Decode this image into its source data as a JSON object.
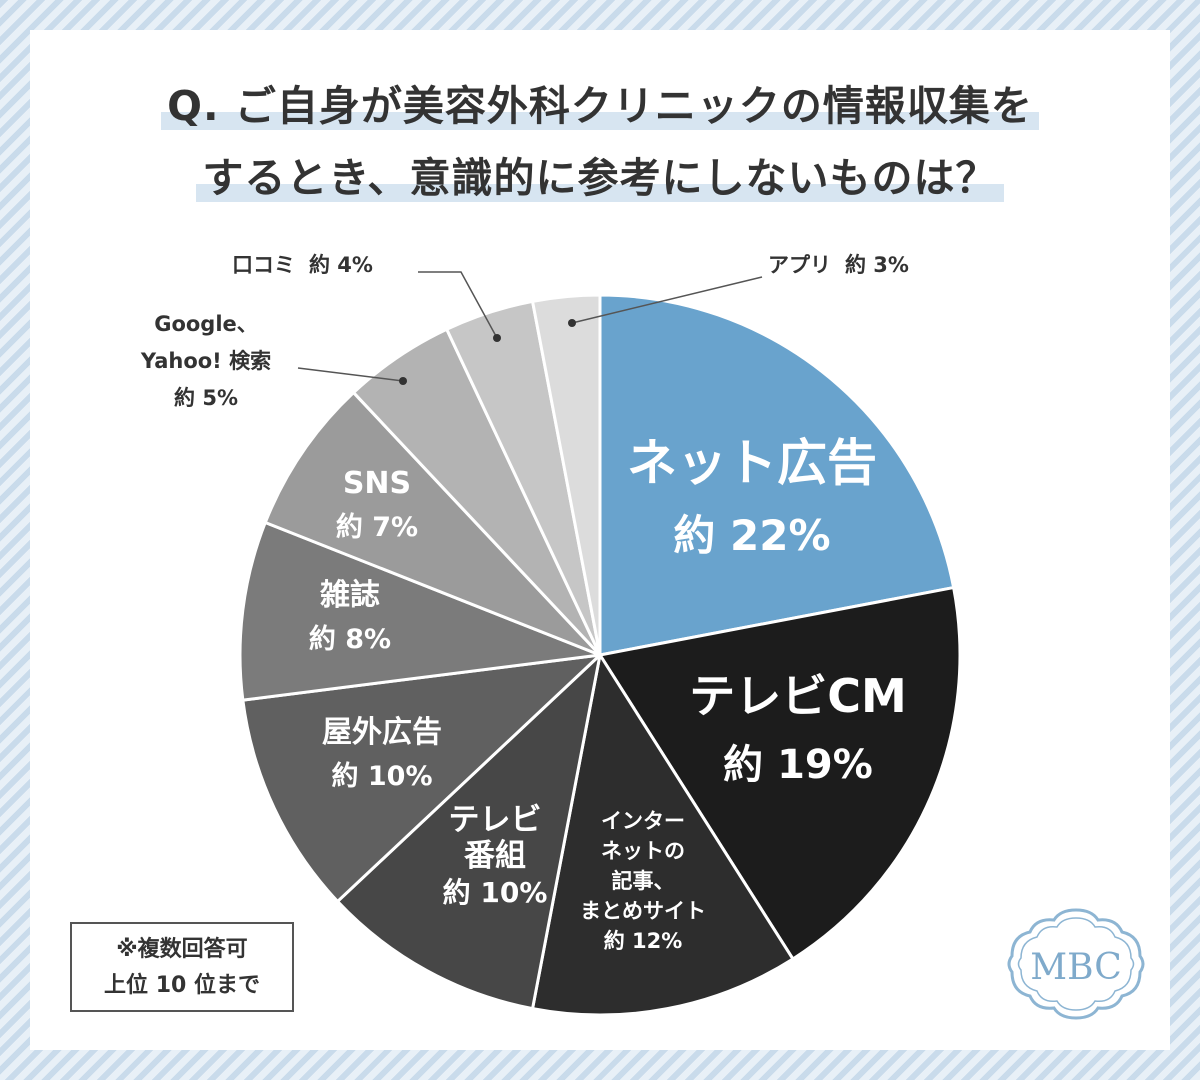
{
  "title": {
    "line1": "Q. ご自身が美容外科クリニックの情報収集を",
    "line2": "するとき、意識的に参考にしないものは？"
  },
  "note": {
    "line1": "※複数回答可",
    "line2": "上位 10 位まで"
  },
  "logo": {
    "text": "MBC"
  },
  "chart_data": {
    "type": "pie",
    "value_prefix": "約",
    "value_suffix": "%",
    "start": "12 o'clock",
    "direction": "clockwise",
    "categories": [
      "ネット広告",
      "テレビCM",
      "インターネットの記事、まとめサイト",
      "テレビ番組",
      "屋外広告",
      "雑誌",
      "SNS",
      "Google、Yahoo! 検索",
      "口コミ",
      "アプリ"
    ],
    "values": [
      22,
      19,
      12,
      10,
      10,
      8,
      7,
      5,
      4,
      3
    ],
    "slices": [
      {
        "label_lines": [
          "ネット広告"
        ],
        "value": 22,
        "value_text": "約 22%",
        "color": "#69a3cd",
        "text_color": "#ffffff",
        "label_style": "large-inside"
      },
      {
        "label_lines": [
          "テレビCM"
        ],
        "value": 19,
        "value_text": "約 19%",
        "color": "#1c1c1c",
        "text_color": "#ffffff",
        "label_style": "large-inside"
      },
      {
        "label_lines": [
          "インター",
          "ネットの",
          "記事、",
          "まとめサイト"
        ],
        "value": 12,
        "value_text": "約 12%",
        "color": "#2d2d2d",
        "text_color": "#ffffff",
        "label_style": "small-inside"
      },
      {
        "label_lines": [
          "テレビ",
          "番組"
        ],
        "value": 10,
        "value_text": "約 10%",
        "color": "#474747",
        "text_color": "#ffffff",
        "label_style": "inside"
      },
      {
        "label_lines": [
          "屋外広告"
        ],
        "value": 10,
        "value_text": "約 10%",
        "color": "#606060",
        "text_color": "#ffffff",
        "label_style": "inside"
      },
      {
        "label_lines": [
          "雑誌"
        ],
        "value": 8,
        "value_text": "約 8%",
        "color": "#7b7b7b",
        "text_color": "#ffffff",
        "label_style": "inside"
      },
      {
        "label_lines": [
          "SNS"
        ],
        "value": 7,
        "value_text": "約 7%",
        "color": "#9b9b9b",
        "text_color": "#ffffff",
        "label_style": "inside"
      },
      {
        "label_lines": [
          "Google、",
          "Yahoo! 検索"
        ],
        "value": 5,
        "value_text": "約 5%",
        "color": "#b3b3b3",
        "text_color": "#333333",
        "label_style": "outside"
      },
      {
        "label_lines": [
          "口コミ"
        ],
        "value": 4,
        "value_text": "約 4%",
        "color": "#c6c6c6",
        "text_color": "#333333",
        "label_style": "outside"
      },
      {
        "label_lines": [
          "アプリ"
        ],
        "value": 3,
        "value_text": "約 3%",
        "color": "#dcdcdc",
        "text_color": "#333333",
        "label_style": "outside"
      }
    ]
  }
}
